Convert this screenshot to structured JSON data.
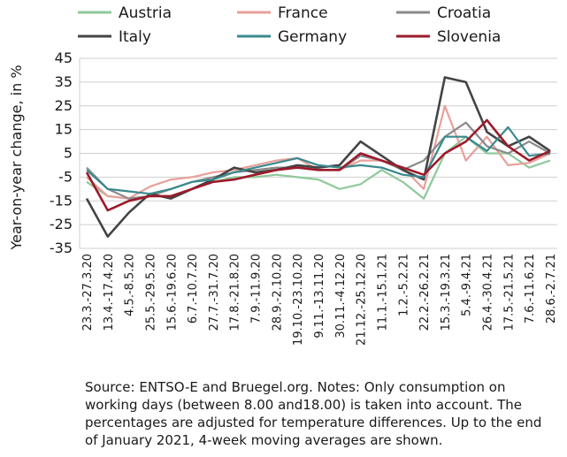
{
  "chart_data": {
    "type": "line",
    "title": "",
    "ylabel": "Year-on-year change, in %",
    "xlabel": "",
    "ylim": [
      -35,
      45
    ],
    "yticks": [
      45,
      35,
      25,
      15,
      5,
      -5,
      -15,
      -25,
      -35
    ],
    "grid": true,
    "legend_placement": "top",
    "x": [
      "23.3.-27.3.20",
      "13.4.-17.4.20",
      "4.5.-8.5.20",
      "25.5.-29.5.20",
      "15.6.-19.6.20",
      "6.7.-10.7.20",
      "27.7.-31.7.20",
      "17.8.-21.8.20",
      "7.9.-11.9.20",
      "28.9.-2.10.20",
      "19.10.-23.10.20",
      "9.11.-13.11.20",
      "30.11.-4.12.20",
      "21.12.-25.12.20",
      "11.1.-15.1.21",
      "1.2.-5.2.21",
      "22.2.-26.2.21",
      "15.3.-19.3.21",
      "5.4.-9.4.21",
      "26.4.-30.4.21",
      "17.5.-21.5.21",
      "7.6.-11.6.21",
      "28.6.-2.7.21"
    ],
    "series": [
      {
        "name": "Austria",
        "color": "#8fc99a",
        "values": [
          -7,
          -13,
          -14,
          -13,
          -13,
          -10,
          -7,
          -5,
          -5,
          -4,
          -5,
          -6,
          -10,
          -8,
          -2,
          -7,
          -14,
          5,
          12,
          5,
          5,
          -1,
          2
        ]
      },
      {
        "name": "France",
        "color": "#e8a09a",
        "values": [
          -5,
          -13,
          -14,
          -9,
          -6,
          -5,
          -3,
          -2,
          0,
          2,
          3,
          -2,
          -2,
          2,
          2,
          -1,
          -10,
          25,
          2,
          12,
          0,
          1,
          5
        ]
      },
      {
        "name": "Croatia",
        "color": "#8a8a8a",
        "values": [
          -1,
          -10,
          -14,
          -13,
          -10,
          -7,
          -5,
          -3,
          -2,
          -1,
          -1,
          -2,
          -2,
          4,
          2,
          -2,
          2,
          12,
          18,
          8,
          5,
          10,
          5
        ]
      },
      {
        "name": "Italy",
        "color": "#444444",
        "values": [
          -14,
          -30,
          -20,
          -12,
          -14,
          -10,
          -6,
          -1,
          -3,
          -2,
          0,
          -1,
          0,
          10,
          4,
          -2,
          -6,
          37,
          35,
          14,
          8,
          12,
          6
        ]
      },
      {
        "name": "Germany",
        "color": "#3a8a8e",
        "values": [
          -2,
          -10,
          -11,
          -12,
          -10,
          -7,
          -6,
          -3,
          -1,
          1,
          3,
          0,
          -1,
          0,
          -1,
          -4,
          -5,
          12,
          12,
          6,
          16,
          4,
          5
        ]
      },
      {
        "name": "Slovenia",
        "color": "#9c1a2a",
        "values": [
          -3,
          -19,
          -15,
          -13,
          -13,
          -10,
          -7,
          -6,
          -4,
          -2,
          -1,
          -2,
          -2,
          5,
          2,
          -1,
          -4,
          5,
          10,
          19,
          8,
          2,
          6
        ]
      }
    ]
  },
  "note": "Source: ENTSO-E and Bruegel.org. Notes: Only consumption on working days (between 8.00 and18.00) is taken into account. The percentages are adjusted for temperature differences. Up to the end of January 2021, 4-week moving averages are shown."
}
